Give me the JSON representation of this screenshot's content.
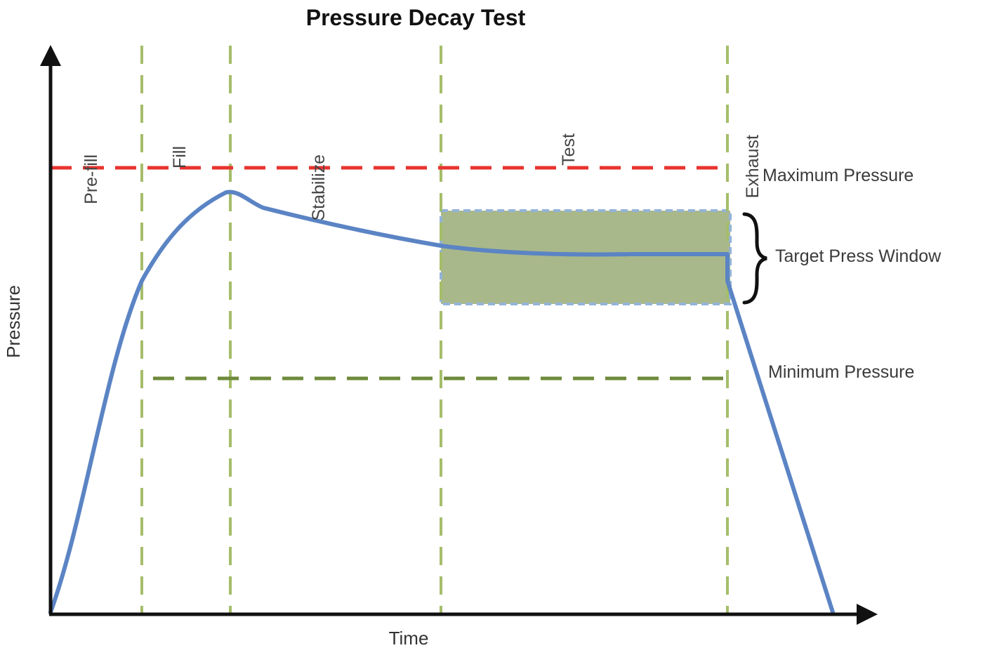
{
  "title": "Pressure Decay Test",
  "axes": {
    "x_label": "Time",
    "y_label": "Pressure"
  },
  "phases": [
    "Pre-fill",
    "Fill",
    "Stabilize",
    "Test",
    "Exhaust"
  ],
  "reference_lines": {
    "maximum": "Maximum Pressure",
    "minimum": "Minimum Pressure"
  },
  "target_window": {
    "label": "Target Press Window"
  },
  "colors": {
    "curve": "#5b84c4",
    "max_line": "#e8332e",
    "min_line": "#6e8a3a",
    "phase_divider": "#a5bd6a",
    "window_fill": "#a9b88a",
    "window_border": "#93b3d8",
    "axis": "#111111"
  }
}
